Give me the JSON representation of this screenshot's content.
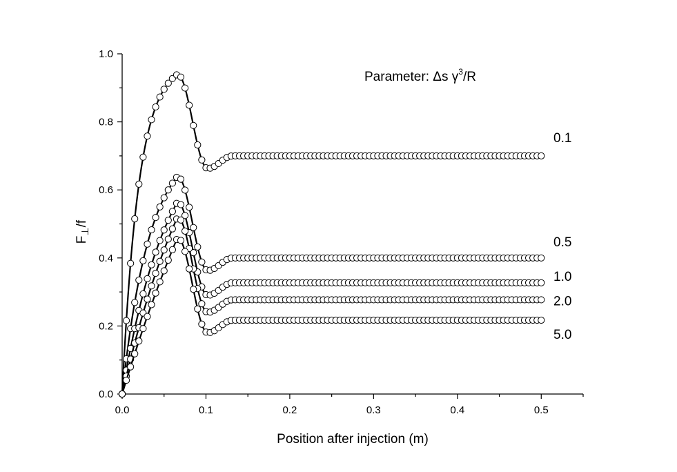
{
  "chart_data": {
    "type": "line",
    "title": "",
    "xlabel": "Position after injection (m)",
    "ylabel_main": "F",
    "ylabel_sub": "⊥",
    "ylabel_tail": "/f",
    "annotation": {
      "prefix": "Parameter: ",
      "delta": "Δ",
      "s": "s ",
      "gamma": "γ",
      "power": "3",
      "tail": "/R"
    },
    "xlim": [
      0.0,
      0.55
    ],
    "ylim": [
      0.0,
      1.0
    ],
    "x_ticks": [
      "0.0",
      "0.1",
      "0.2",
      "0.3",
      "0.4",
      "0.5"
    ],
    "y_ticks": [
      "0.0",
      "0.2",
      "0.4",
      "0.6",
      "0.8",
      "1.0"
    ],
    "grid": false,
    "marker": "open-circle",
    "series": [
      {
        "name": "0.1",
        "peak": 0.94,
        "peak_x": 0.066,
        "dip": 0.663,
        "dip_x": 0.102,
        "final": 0.7,
        "rise_k": 50
      },
      {
        "name": "0.5",
        "peak": 0.64,
        "peak_x": 0.066,
        "dip": 0.363,
        "dip_x": 0.102,
        "final": 0.4,
        "rise_k": 30
      },
      {
        "name": "1.0",
        "peak": 0.565,
        "peak_x": 0.066,
        "dip": 0.29,
        "dip_x": 0.102,
        "final": 0.327,
        "rise_k": 18
      },
      {
        "name": "2.0",
        "peak": 0.52,
        "peak_x": 0.066,
        "dip": 0.24,
        "dip_x": 0.102,
        "final": 0.277,
        "rise_k": 10
      },
      {
        "name": "5.0",
        "peak": 0.46,
        "peak_x": 0.066,
        "dip": 0.18,
        "dip_x": 0.102,
        "final": 0.217,
        "rise_k": 5
      }
    ]
  }
}
